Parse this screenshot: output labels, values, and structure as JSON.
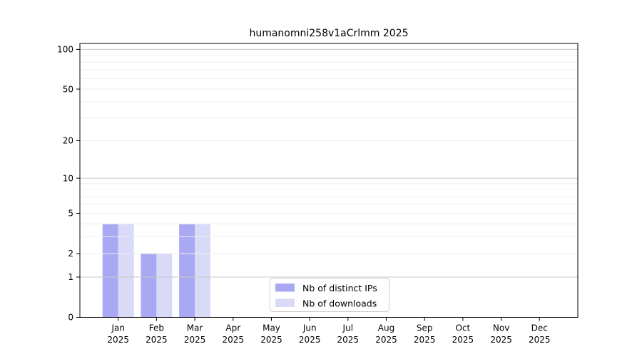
{
  "chart_data": {
    "type": "bar",
    "title": "humanomni258v1aCrlmm 2025",
    "categories": [
      "Jan",
      "Feb",
      "Mar",
      "Apr",
      "May",
      "Jun",
      "Jul",
      "Aug",
      "Sep",
      "Oct",
      "Nov",
      "Dec"
    ],
    "category_year": "2025",
    "series": [
      {
        "name": "Nb of distinct IPs",
        "color": "#a9a9f3",
        "values": [
          4,
          2,
          4,
          0,
          0,
          0,
          0,
          0,
          0,
          0,
          0,
          0
        ]
      },
      {
        "name": "Nb of downloads",
        "color": "#d9d9f8",
        "values": [
          4,
          2,
          4,
          0,
          0,
          0,
          0,
          0,
          0,
          0,
          0,
          0
        ]
      }
    ],
    "xlabel": "",
    "ylabel": "",
    "yscale": "log1p",
    "ylim": [
      0,
      111
    ],
    "yticks": [
      0,
      1,
      2,
      5,
      10,
      20,
      50,
      100
    ],
    "minor_gridlines": [
      2,
      3,
      4,
      5,
      6,
      7,
      8,
      9,
      20,
      30,
      40,
      50,
      60,
      70,
      80,
      90
    ],
    "major_gridlines": [
      1,
      10,
      100
    ],
    "grid": true,
    "legend_position": "lower center"
  },
  "colors": {
    "bar_distinct_ips": "#a9a9f3",
    "bar_downloads": "#d9d9f8",
    "minor_grid": "#eeeeee",
    "major_grid": "#c8c8c8",
    "axis": "#000000",
    "legend_border": "#cccccc",
    "legend_background": "#ffffff",
    "background": "#ffffff"
  }
}
